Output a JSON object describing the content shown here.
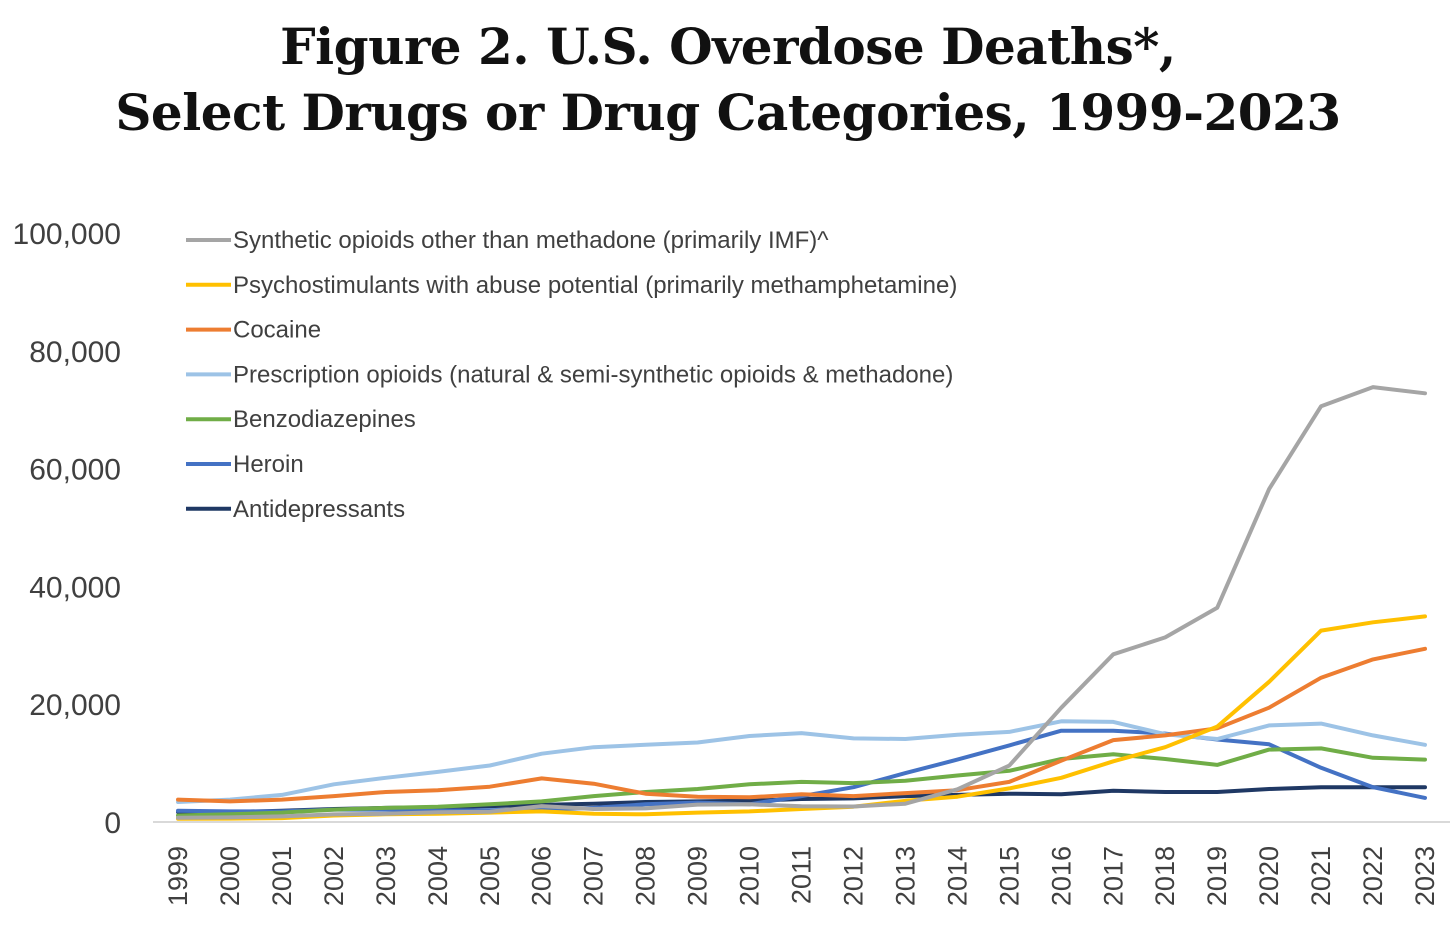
{
  "title": {
    "line1": "Figure 2. U.S. Overdose Deaths*,",
    "line2": "Select Drugs or Drug Categories, 1999-2023"
  },
  "chart_data": {
    "type": "line",
    "title": "Figure 2. U.S. Overdose Deaths*, Select Drugs or Drug Categories, 1999-2023",
    "xlabel": "",
    "ylabel": "",
    "ylim": [
      0,
      100000
    ],
    "yticks": [
      "0",
      "20,000",
      "40,000",
      "60,000",
      "80,000",
      "100,000"
    ],
    "ytick_values": [
      0,
      20000,
      40000,
      60000,
      80000,
      100000
    ],
    "legend_position": "top-left",
    "grid": false,
    "x": [
      "1999",
      "2000",
      "2001",
      "2002",
      "2003",
      "2004",
      "2005",
      "2006",
      "2007",
      "2008",
      "2009",
      "2010",
      "2011",
      "2012",
      "2013",
      "2014",
      "2015",
      "2016",
      "2017",
      "2018",
      "2019",
      "2020",
      "2021",
      "2022",
      "2023"
    ],
    "series": [
      {
        "name": "Synthetic opioids other than methadone (primarily IMF)^",
        "color": "#a5a5a5",
        "values": [
          730,
          782,
          957,
          1295,
          1400,
          1664,
          1742,
          2707,
          2213,
          2306,
          2946,
          3007,
          2666,
          2628,
          3105,
          5544,
          9580,
          19413,
          28466,
          31335,
          36359,
          56516,
          70601,
          73838,
          72776
        ]
      },
      {
        "name": "Psychostimulants with abuse potential (primarily methamphetamine)",
        "color": "#ffc000",
        "values": [
          547,
          578,
          660,
          1100,
          1300,
          1400,
          1600,
          1800,
          1400,
          1300,
          1600,
          1800,
          2200,
          2600,
          3600,
          4300,
          5700,
          7500,
          10300,
          12700,
          16200,
          23800,
          32500,
          33900,
          34900
        ]
      },
      {
        "name": "Cocaine",
        "color": "#ed7d31",
        "values": [
          3800,
          3500,
          3800,
          4400,
          5100,
          5400,
          6000,
          7400,
          6500,
          4800,
          4300,
          4200,
          4700,
          4400,
          4900,
          5400,
          6800,
          10400,
          13900,
          14700,
          15900,
          19400,
          24500,
          27600,
          29400
        ]
      },
      {
        "name": "Prescription opioids (natural & semi-synthetic opioids & methadone)",
        "color": "#9dc3e6",
        "values": [
          3400,
          3800,
          4600,
          6400,
          7500,
          8500,
          9600,
          11600,
          12700,
          13100,
          13500,
          14600,
          15100,
          14200,
          14100,
          14800,
          15300,
          17100,
          17000,
          14900,
          14100,
          16400,
          16700,
          14700,
          13100
        ]
      },
      {
        "name": "Benzodiazepines",
        "color": "#70ad47",
        "values": [
          1100,
          1300,
          1600,
          2100,
          2400,
          2600,
          3000,
          3500,
          4400,
          5100,
          5600,
          6400,
          6800,
          6600,
          7000,
          7900,
          8700,
          10700,
          11500,
          10700,
          9700,
          12300,
          12500,
          10900,
          10600
        ]
      },
      {
        "name": "Heroin",
        "color": "#4472c4",
        "values": [
          1900,
          1800,
          1800,
          2100,
          2100,
          1900,
          2000,
          2100,
          2400,
          3000,
          3300,
          3000,
          4400,
          5900,
          8300,
          10600,
          13000,
          15500,
          15500,
          15000,
          14000,
          13200,
          9200,
          5900,
          4100
        ]
      },
      {
        "name": "Antidepressants",
        "color": "#1f3864",
        "values": [
          1700,
          1700,
          1900,
          2200,
          2400,
          2500,
          2700,
          2900,
          3100,
          3400,
          3500,
          3600,
          3900,
          4000,
          4400,
          4600,
          4800,
          4700,
          5300,
          5100,
          5100,
          5600,
          5900,
          5900,
          5900
        ]
      }
    ]
  }
}
